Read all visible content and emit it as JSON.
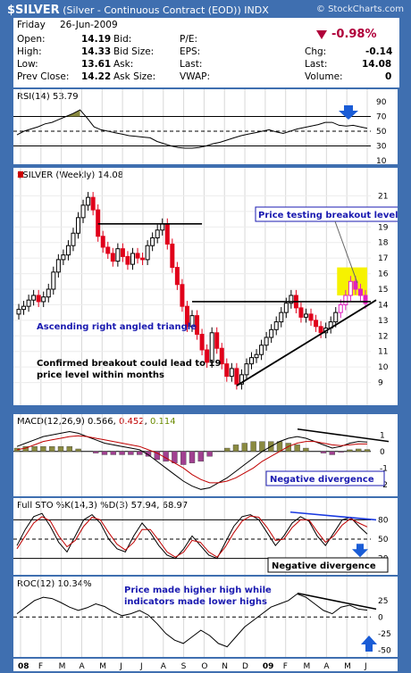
{
  "header": {
    "symbol": "$SILVER",
    "description": "(Silver - Continuous Contract (EOD))",
    "exchange": "INDX",
    "source": "© StockCharts.com"
  },
  "quote": {
    "day": "Friday",
    "date": "26-Jun-2009",
    "open_label": "Open:",
    "open": "14.19",
    "high_label": "High:",
    "high": "14.33",
    "low_label": "Low:",
    "low": "13.61",
    "prev_close_label": "Prev Close:",
    "prev_close": "14.22",
    "bid_label": "Bid:",
    "bid_size_label": "Bid Size:",
    "ask_label": "Ask:",
    "ask_size_label": "Ask Size:",
    "pe_label": "P/E:",
    "eps_label": "EPS:",
    "last_label_mid": "Last:",
    "vwap_label": "VWAP:",
    "change_pct": "-0.98%",
    "chg_label": "Chg:",
    "chg": "-0.14",
    "last_label": "Last:",
    "last": "14.08",
    "volume_label": "Volume:",
    "volume": "0",
    "down_color": "#b0003a"
  },
  "colors": {
    "up": "#000000",
    "down": "#e0001a",
    "bg_frame": "#3f6fb0",
    "annotation_blue": "#1a1ab0",
    "arrow_blue": "#1a5cd6",
    "highlight": "#f6f200",
    "highlight_candles": "#e020c0",
    "histogram": "#8a8a40",
    "histogram_neg": "#a04090",
    "divergence": "#1a3ae0"
  },
  "chart_data": [
    {
      "type": "line",
      "panel": "rsi",
      "legend": "RSI(14) 53.79",
      "ylim": [
        10,
        90
      ],
      "yticks": [
        "90",
        "70",
        "50",
        "30",
        "10"
      ],
      "x": [
        0,
        2,
        4,
        6,
        8,
        10,
        12,
        14,
        16,
        18,
        20,
        22,
        24,
        26,
        28,
        30,
        32,
        34,
        36,
        38,
        40,
        42,
        44,
        46,
        48,
        50,
        52,
        54,
        56,
        58,
        60,
        62,
        64,
        66,
        68,
        70,
        72,
        74,
        76,
        78,
        80,
        82,
        84,
        86,
        88,
        90,
        92,
        94,
        96,
        98,
        100
      ],
      "values": [
        45,
        50,
        53,
        56,
        60,
        62,
        66,
        70,
        74,
        79,
        68,
        56,
        52,
        50,
        48,
        46,
        44,
        43,
        42,
        41,
        36,
        33,
        30,
        28,
        27,
        27,
        28,
        30,
        33,
        35,
        38,
        41,
        44,
        46,
        48,
        50,
        52,
        49,
        47,
        50,
        53,
        55,
        57,
        59,
        62,
        62,
        58,
        57,
        58,
        56,
        54
      ]
    },
    {
      "type": "candlestick",
      "panel": "price",
      "legend": "$SILVER (Weekly) 14.08",
      "ylim": [
        8,
        22
      ],
      "yticks": [
        "21",
        "20",
        "19",
        "18",
        "17",
        "16",
        "15",
        "14",
        "13",
        "12",
        "11",
        "10",
        "9"
      ],
      "close": [
        13.7,
        13.9,
        14.3,
        14.6,
        14.2,
        14.5,
        15.0,
        16.1,
        16.9,
        17.2,
        17.8,
        18.6,
        19.6,
        20.4,
        20.9,
        20.1,
        18.4,
        17.7,
        17.3,
        16.8,
        17.6,
        17.1,
        16.6,
        17.3,
        17.0,
        16.9,
        17.8,
        18.3,
        18.8,
        19.2,
        17.9,
        16.4,
        15.3,
        13.9,
        12.6,
        13.3,
        12.1,
        11.1,
        10.3,
        12.2,
        11.2,
        10.2,
        9.4,
        9.9,
        8.9,
        9.5,
        10.2,
        10.6,
        10.8,
        11.4,
        11.9,
        12.4,
        12.9,
        13.5,
        14.1,
        14.6,
        13.8,
        13.2,
        13.4,
        13.0,
        12.6,
        12.2,
        12.5,
        12.9,
        13.5,
        14.0,
        14.6,
        15.5,
        15.0,
        14.6,
        14.08
      ],
      "annotations": [
        "Price testing breakout level",
        "Ascending right angled triangle",
        "Confirmed breakout could lead to 19",
        "price level within months"
      ],
      "xticks": [
        "08",
        "F",
        "M",
        "A",
        "M",
        "J",
        "J",
        "A",
        "S",
        "O",
        "N",
        "D",
        "09",
        "F",
        "M",
        "A",
        "M",
        "J"
      ]
    },
    {
      "type": "line",
      "panel": "macd",
      "legend_name": "MACD(12,26,9)",
      "legend_values": [
        "0.566",
        "0.452",
        "0.114"
      ],
      "ylim": [
        -2.5,
        1.5
      ],
      "yticks": [
        "1",
        "0",
        "-1",
        "-2"
      ],
      "annotation": "Negative divergence",
      "macd": [
        0.3,
        0.5,
        0.7,
        0.9,
        1.0,
        1.1,
        1.2,
        1.1,
        0.9,
        0.7,
        0.5,
        0.4,
        0.3,
        0.2,
        0.1,
        -0.2,
        -0.6,
        -1.0,
        -1.4,
        -1.8,
        -2.1,
        -2.3,
        -2.2,
        -1.9,
        -1.6,
        -1.2,
        -0.8,
        -0.4,
        0.0,
        0.3,
        0.6,
        0.8,
        0.9,
        0.8,
        0.6,
        0.4,
        0.2,
        0.3,
        0.5,
        0.6,
        0.57
      ],
      "signal": [
        0.1,
        0.2,
        0.4,
        0.6,
        0.7,
        0.8,
        0.9,
        0.95,
        0.9,
        0.8,
        0.7,
        0.6,
        0.5,
        0.4,
        0.3,
        0.1,
        -0.1,
        -0.4,
        -0.7,
        -1.0,
        -1.4,
        -1.7,
        -1.9,
        -1.9,
        -1.8,
        -1.6,
        -1.3,
        -1.0,
        -0.6,
        -0.3,
        0.0,
        0.3,
        0.5,
        0.6,
        0.6,
        0.5,
        0.4,
        0.35,
        0.4,
        0.45,
        0.45
      ]
    },
    {
      "type": "line",
      "panel": "sto",
      "legend": "Full STO %K(14,3) %D(3) 57.94, 68.97",
      "ylim": [
        0,
        100
      ],
      "yticks": [
        "80",
        "50",
        "20"
      ],
      "k": [
        40,
        65,
        85,
        90,
        70,
        45,
        30,
        55,
        80,
        88,
        75,
        50,
        35,
        30,
        55,
        75,
        60,
        40,
        25,
        20,
        35,
        55,
        40,
        25,
        20,
        45,
        70,
        85,
        88,
        80,
        60,
        40,
        55,
        75,
        85,
        78,
        55,
        40,
        60,
        80,
        84,
        70,
        58
      ],
      "d": [
        35,
        55,
        75,
        85,
        78,
        55,
        38,
        48,
        70,
        84,
        80,
        60,
        42,
        33,
        45,
        65,
        65,
        48,
        30,
        22,
        30,
        48,
        45,
        30,
        22,
        38,
        60,
        78,
        86,
        84,
        68,
        48,
        50,
        68,
        80,
        80,
        62,
        45,
        55,
        72,
        82,
        75,
        69
      ]
    },
    {
      "type": "line",
      "panel": "roc",
      "legend": "ROC(12) 10.34%",
      "ylim": [
        -55,
        45
      ],
      "yticks": [
        "25",
        "0",
        "-25",
        "-50"
      ],
      "annotations": [
        "Negative divergence",
        "Price made higher high while",
        "indicators made lower highs"
      ],
      "values": [
        5,
        15,
        25,
        30,
        28,
        22,
        15,
        10,
        14,
        20,
        16,
        8,
        2,
        5,
        10,
        3,
        -10,
        -25,
        -35,
        -40,
        -30,
        -20,
        -28,
        -40,
        -45,
        -30,
        -15,
        -5,
        5,
        15,
        20,
        25,
        35,
        30,
        20,
        10,
        5,
        15,
        18,
        12,
        10.34
      ]
    }
  ]
}
